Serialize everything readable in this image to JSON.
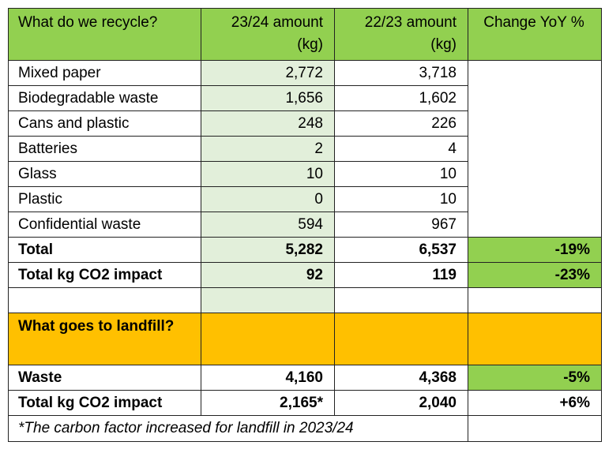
{
  "header": {
    "col1": "What do we recycle?",
    "col2": "23/24 amount (kg)",
    "col3": "22/23 amount (kg)",
    "col4": "Change YoY %"
  },
  "recycle_rows": [
    {
      "label": "Mixed paper",
      "y2324": "2,772",
      "y2223": "3,718"
    },
    {
      "label": "Biodegradable waste",
      "y2324": "1,656",
      "y2223": "1,602"
    },
    {
      "label": "Cans and plastic",
      "y2324": "248",
      "y2223": "226"
    },
    {
      "label": "Batteries",
      "y2324": "2",
      "y2223": "4"
    },
    {
      "label": "Glass",
      "y2324": "10",
      "y2223": "10"
    },
    {
      "label": "Plastic",
      "y2324": "0",
      "y2223": "10"
    },
    {
      "label": "Confidential waste",
      "y2324": "594",
      "y2223": "967"
    }
  ],
  "total": {
    "label": "Total",
    "y2324": "5,282",
    "y2223": "6,537",
    "change": "-19%"
  },
  "total_co2": {
    "label": "Total kg CO2 impact",
    "y2324": "92",
    "y2223": "119",
    "change": "-23%"
  },
  "landfill_header": "What goes to landfill?",
  "waste": {
    "label": "Waste",
    "y2324": "4,160",
    "y2223": "4,368",
    "change": "-5%"
  },
  "landfill_co2": {
    "label": "Total kg CO2 impact",
    "y2324": "2,165*",
    "y2223": "2,040",
    "change": "+6%"
  },
  "footnote": "*The carbon factor increased for landfill in 2023/24",
  "colors": {
    "header_green": "#92d050",
    "light_green": "#e2efda",
    "landfill_orange": "#ffc000"
  }
}
